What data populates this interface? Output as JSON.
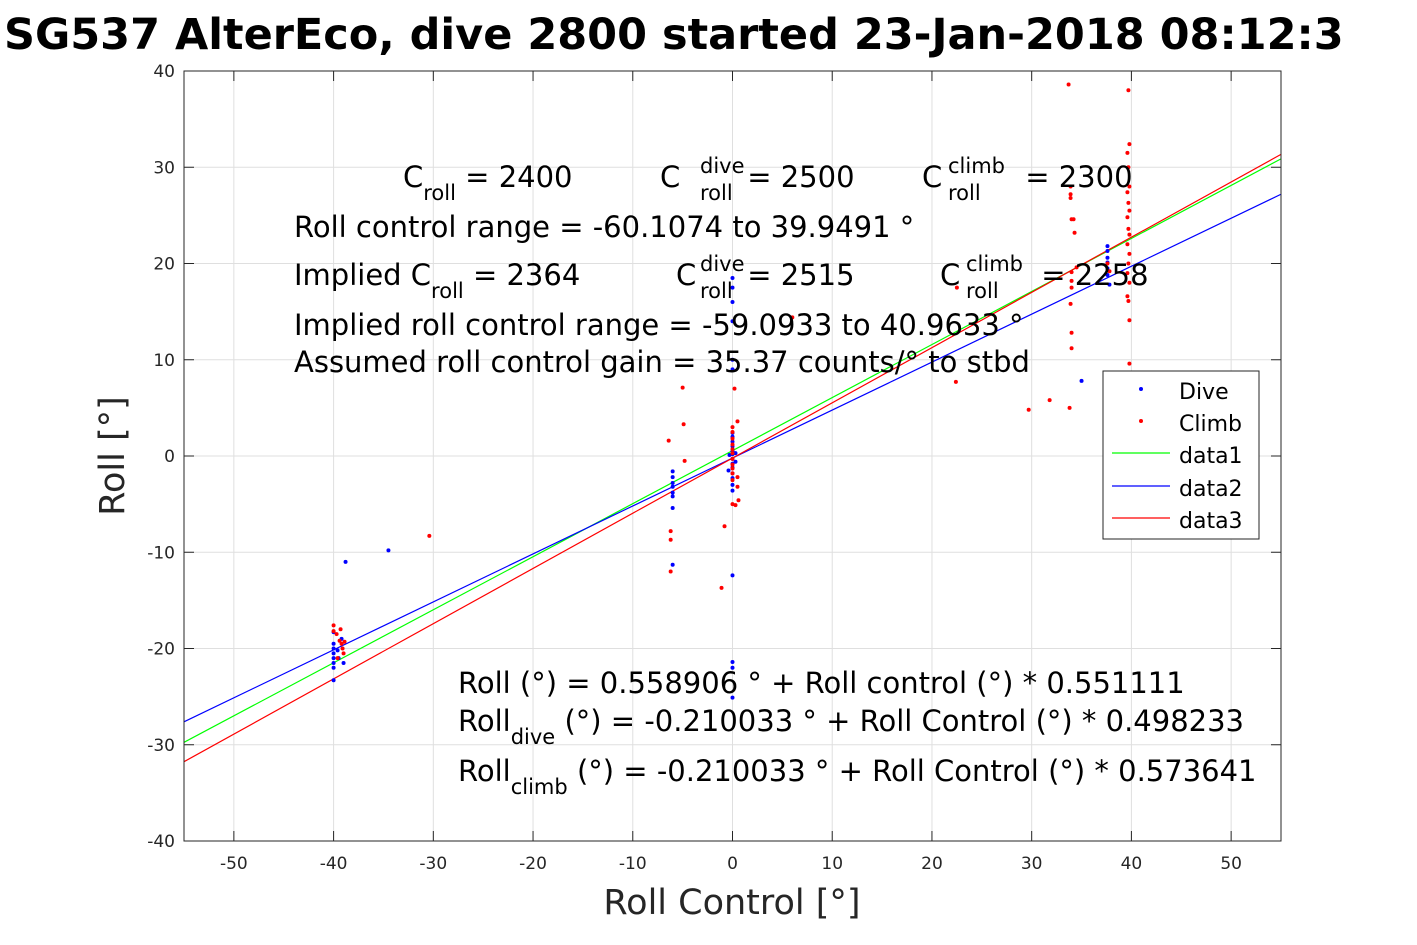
{
  "chart_data": {
    "type": "scatter",
    "title": "SG537 AlterEco, dive 2800 started 23-Jan-2018 08:12:3",
    "xlabel": "Roll Control [°]",
    "ylabel": "Roll [°]",
    "xlim": [
      -55,
      55
    ],
    "ylim": [
      -40,
      40
    ],
    "xticks": [
      -50,
      -40,
      -30,
      -20,
      -10,
      0,
      10,
      20,
      30,
      40,
      50
    ],
    "yticks": [
      -40,
      -30,
      -20,
      -10,
      0,
      10,
      20,
      30,
      40
    ],
    "grid": true,
    "legend_position": "right",
    "annotations": {
      "c_roll_base": "C",
      "c_roll_sub": "roll",
      "c_roll_value": " = 2400",
      "c_dive_sup": "dive",
      "c_dive_value": " = 2500",
      "c_climb_sup": "climb",
      "c_climb_value": " = 2300",
      "range": "Roll control range = -60.1074 to 39.9491 °",
      "implied_prefix": "Implied C",
      "implied_value": " = 2364",
      "implied_dive_value": " = 2515",
      "implied_climb_value": " = 2258",
      "implied_range": "Implied roll control range = -59.0933 to 40.9633 °",
      "gain": "Assumed roll control gain = 35.37 counts/° to stbd",
      "fit": "Roll (°) = 0.558906 ° + Roll control (°) * 0.551111",
      "fit_dive_base": "Roll",
      "fit_dive_sub": "dive",
      "fit_dive_rest": " (°) = -0.210033 ° + Roll Control (°) * 0.498233",
      "fit_climb_base": "Roll",
      "fit_climb_sub": "climb",
      "fit_climb_rest": " (°) = -0.210033 ° + Roll Control (°) * 0.573641"
    },
    "series": [
      {
        "name": "Dive",
        "kind": "points",
        "color": "#0000ff",
        "points": [
          [
            -40,
            -20
          ],
          [
            -40,
            -20.5
          ],
          [
            -40,
            -21
          ],
          [
            -40,
            -21.5
          ],
          [
            -40,
            -22
          ],
          [
            -40,
            -23.3
          ],
          [
            -40,
            -19.5
          ],
          [
            -40,
            -18.3
          ],
          [
            -39.6,
            -20.2
          ],
          [
            -39.5,
            -21
          ],
          [
            -39.2,
            -19
          ],
          [
            -39,
            -21.5
          ],
          [
            -38.8,
            -11
          ],
          [
            -34.5,
            -9.8
          ],
          [
            -6,
            -1.6
          ],
          [
            -6,
            -2.2
          ],
          [
            -6,
            -2.8
          ],
          [
            -6,
            -3.2
          ],
          [
            -6,
            -3.8
          ],
          [
            -6,
            -4.2
          ],
          [
            -6,
            -5.4
          ],
          [
            -6,
            -11.3
          ],
          [
            0,
            18.5
          ],
          [
            0,
            17.5
          ],
          [
            0,
            16
          ],
          [
            0,
            14
          ],
          [
            0,
            10
          ],
          [
            0,
            9
          ],
          [
            0,
            2.4
          ],
          [
            0,
            2
          ],
          [
            0,
            1.5
          ],
          [
            0,
            1
          ],
          [
            0,
            0.5
          ],
          [
            0,
            0.2
          ],
          [
            0,
            -0.3
          ],
          [
            0,
            -0.8
          ],
          [
            0,
            -1.2
          ],
          [
            0,
            -1.8
          ],
          [
            0,
            -2.3
          ],
          [
            0,
            -3
          ],
          [
            0,
            -3.6
          ],
          [
            0,
            -12.4
          ],
          [
            0,
            -21.4
          ],
          [
            0,
            -22
          ],
          [
            0,
            -25.1
          ],
          [
            -0.3,
            0.1
          ],
          [
            0.3,
            0.3
          ],
          [
            0.3,
            -0.6
          ],
          [
            -0.4,
            -1.5
          ],
          [
            35,
            7.8
          ],
          [
            37.6,
            21.8
          ],
          [
            37.6,
            21.3
          ],
          [
            37.6,
            20.6
          ],
          [
            37.6,
            20.1
          ],
          [
            37.6,
            19.5
          ],
          [
            37.6,
            18.8
          ],
          [
            37.8,
            17.8
          ]
        ]
      },
      {
        "name": "Climb",
        "kind": "points",
        "color": "#ff0000",
        "points": [
          [
            -40,
            -17.6
          ],
          [
            -40,
            -18.2
          ],
          [
            -39.7,
            -18.5
          ],
          [
            -39.4,
            -19.2
          ],
          [
            -39.2,
            -19.5
          ],
          [
            -39.1,
            -20
          ],
          [
            -39,
            -20.5
          ],
          [
            -39.6,
            -21
          ],
          [
            -39.3,
            -18
          ],
          [
            -38.9,
            -19.3
          ],
          [
            -30.4,
            -8.3
          ],
          [
            -6.4,
            1.6
          ],
          [
            -6.2,
            -7.8
          ],
          [
            -6.2,
            -8.7
          ],
          [
            -6.2,
            -12
          ],
          [
            -5,
            7.1
          ],
          [
            -4.9,
            3.3
          ],
          [
            -4.8,
            -0.5
          ],
          [
            -1.1,
            -13.7
          ],
          [
            -0.8,
            -7.3
          ],
          [
            0,
            3
          ],
          [
            0,
            2.5
          ],
          [
            0,
            1.8
          ],
          [
            0,
            1.2
          ],
          [
            0,
            0.7
          ],
          [
            0,
            0.3
          ],
          [
            0,
            -0.3
          ],
          [
            0,
            -0.9
          ],
          [
            0,
            -1.3
          ],
          [
            0,
            -1.8
          ],
          [
            0,
            -2.5
          ],
          [
            0,
            -5
          ],
          [
            0.2,
            7
          ],
          [
            0.5,
            3.6
          ],
          [
            0.5,
            -2.2
          ],
          [
            0.5,
            -3.2
          ],
          [
            0.6,
            -4.6
          ],
          [
            0.3,
            -5.1
          ],
          [
            6,
            14.4
          ],
          [
            22.4,
            7.7
          ],
          [
            22.5,
            17.5
          ],
          [
            29.7,
            4.8
          ],
          [
            31.8,
            5.8
          ],
          [
            33.7,
            38.6
          ],
          [
            33.9,
            28
          ],
          [
            33.9,
            27.2
          ],
          [
            33.9,
            26.8
          ],
          [
            34,
            24.6
          ],
          [
            34.2,
            24.6
          ],
          [
            34.3,
            23.2
          ],
          [
            34.5,
            19.6
          ],
          [
            34,
            19.1
          ],
          [
            34,
            18.2
          ],
          [
            34,
            17.5
          ],
          [
            33.9,
            15.8
          ],
          [
            34,
            12.8
          ],
          [
            34,
            11.2
          ],
          [
            33.8,
            5
          ],
          [
            37.6,
            20
          ],
          [
            37.8,
            19.2
          ],
          [
            39.7,
            38
          ],
          [
            39.8,
            32.4
          ],
          [
            39.6,
            31.5
          ],
          [
            39.7,
            30
          ],
          [
            39.8,
            28
          ],
          [
            39.6,
            27.4
          ],
          [
            39.7,
            26.3
          ],
          [
            39.8,
            25.5
          ],
          [
            39.6,
            24.8
          ],
          [
            39.7,
            23.6
          ],
          [
            39.8,
            23
          ],
          [
            39.6,
            22
          ],
          [
            39.8,
            21
          ],
          [
            39.7,
            20
          ],
          [
            39.6,
            19
          ],
          [
            39.8,
            18
          ],
          [
            39.6,
            16.6
          ],
          [
            39.7,
            16.1
          ],
          [
            39.8,
            14.1
          ],
          [
            39.8,
            9.6
          ]
        ]
      },
      {
        "name": "data1",
        "kind": "line",
        "color": "#00ff00",
        "intercept": 0.558906,
        "slope": 0.551111
      },
      {
        "name": "data2",
        "kind": "line",
        "color": "#0000ff",
        "intercept": -0.210033,
        "slope": 0.498233
      },
      {
        "name": "data3",
        "kind": "line",
        "color": "#ff0000",
        "intercept": -0.210033,
        "slope": 0.573641
      }
    ]
  }
}
